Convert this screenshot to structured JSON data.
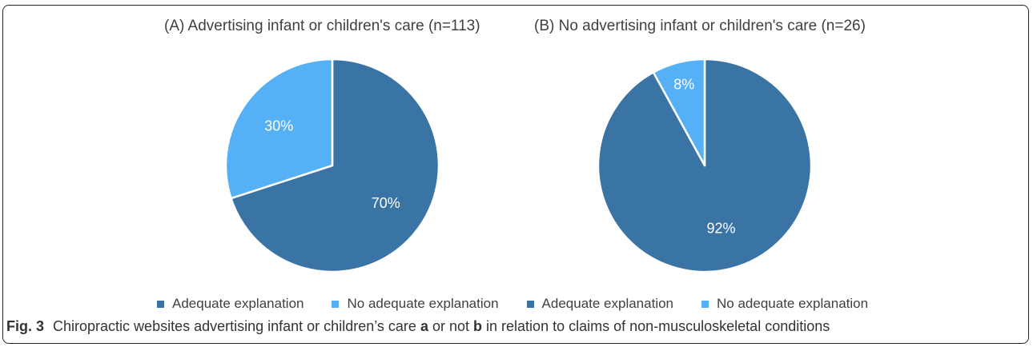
{
  "chart_data": [
    {
      "type": "pie",
      "title": "(A) Advertising infant or children's care (n=113)",
      "categories": [
        "Adequate explanation",
        "No adequate explanation"
      ],
      "values": [
        70,
        30
      ],
      "labels": [
        "70%",
        "30%"
      ],
      "colors": [
        "#3A74A5",
        "#56B0F5"
      ],
      "legend": "bottom"
    },
    {
      "type": "pie",
      "title": "(B) No advertising infant or children's care (n=26)",
      "categories": [
        "Adequate explanation",
        "No adequate explanation"
      ],
      "values": [
        92,
        8
      ],
      "labels": [
        "92%",
        "8%"
      ],
      "colors": [
        "#3A74A5",
        "#56B0F5"
      ],
      "legend": "bottom"
    }
  ],
  "legend": [
    {
      "label": "Adequate explanation",
      "color": "#3A74A5"
    },
    {
      "label": "No adequate explanation",
      "color": "#56B0F5"
    },
    {
      "label": "Adequate explanation",
      "color": "#3A74A5"
    },
    {
      "label": "No adequate explanation",
      "color": "#56B0F5"
    }
  ],
  "caption": {
    "fig": "Fig. 3",
    "part1": "Chiropractic websites advertising infant or children’s care",
    "a": "a",
    "part2": "or not",
    "b": "b",
    "part3": "in relation to claims of non-musculoskeletal conditions"
  }
}
